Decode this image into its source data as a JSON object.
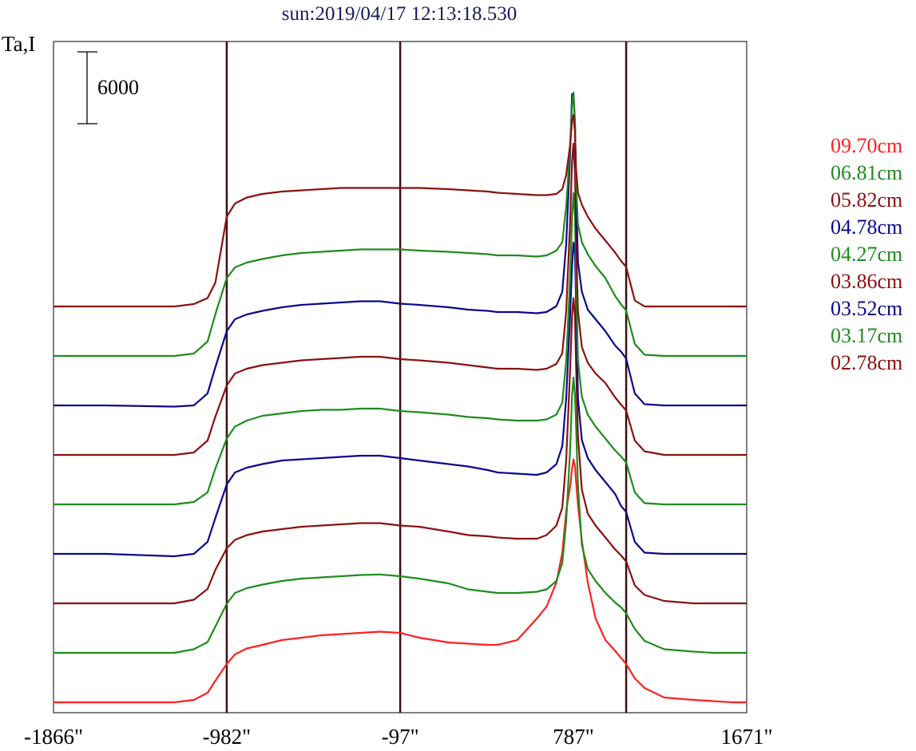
{
  "title": "sun:2019/04/17 12:13:18.530",
  "ylabel": "Ta,I",
  "scale_bar_label": "6000",
  "chart_data": {
    "type": "line",
    "title": "sun:2019/04/17 12:13:18.530",
    "ylabel": "Ta,I",
    "xlim": [
      -1866,
      1671
    ],
    "x_ticks": [
      -1866,
      -982,
      -97,
      787,
      1671
    ],
    "x_tick_labels": [
      "-1866\"",
      "-982\"",
      "-97\"",
      "787\"",
      "1671\""
    ],
    "vertical_lines": [
      -982,
      -97,
      1056
    ],
    "scale_bar_value": 6000,
    "legend_position": "right",
    "x": [
      -1866,
      -1600,
      -1250,
      -1150,
      -1080,
      -1040,
      -982,
      -940,
      -880,
      -800,
      -700,
      -600,
      -500,
      -400,
      -300,
      -200,
      -97,
      0,
      150,
      250,
      350,
      400,
      500,
      600,
      650,
      700,
      730,
      750,
      770,
      780,
      787,
      795,
      800,
      810,
      830,
      860,
      900,
      950,
      1000,
      1030,
      1056,
      1100,
      1150,
      1250,
      1400,
      1500,
      1600,
      1671
    ],
    "series": [
      {
        "name": "09.70cm",
        "color": "#ff2020",
        "offset": 0,
        "values": [
          0,
          0,
          0,
          200,
          800,
          1800,
          3200,
          4000,
          4500,
          4800,
          5200,
          5400,
          5600,
          5700,
          5800,
          5900,
          5800,
          5400,
          5000,
          4900,
          4800,
          4800,
          5200,
          7000,
          8000,
          10000,
          12500,
          16000,
          18000,
          19500,
          20300,
          19700,
          18500,
          16500,
          13500,
          10000,
          7000,
          5200,
          4300,
          3700,
          3200,
          2000,
          1200,
          400,
          200,
          100,
          0,
          0
        ]
      },
      {
        "name": "06.81cm",
        "color": "#1e8c1e",
        "offset": 1,
        "values": [
          0,
          0,
          0,
          300,
          900,
          2200,
          4100,
          5000,
          5400,
          5700,
          6000,
          6200,
          6300,
          6400,
          6500,
          6550,
          6400,
          6200,
          5800,
          5300,
          5100,
          5000,
          5000,
          5100,
          5300,
          6000,
          7500,
          11000,
          17000,
          21500,
          23000,
          21500,
          19000,
          14000,
          9000,
          7000,
          6000,
          5000,
          4200,
          3800,
          3300,
          2000,
          1000,
          300,
          100,
          0,
          0,
          0
        ]
      },
      {
        "name": "05.82cm",
        "color": "#8b1010",
        "offset": 2,
        "values": [
          0,
          0,
          0,
          300,
          1200,
          2800,
          4600,
          5300,
          5700,
          6000,
          6200,
          6400,
          6500,
          6600,
          6700,
          6700,
          6500,
          6400,
          6000,
          5700,
          5600,
          5500,
          5400,
          5400,
          5700,
          6500,
          8000,
          12000,
          19500,
          24000,
          25500,
          24000,
          20000,
          14000,
          9500,
          7500,
          6500,
          5500,
          4500,
          4000,
          3500,
          1500,
          700,
          200,
          0,
          0,
          0,
          0
        ]
      },
      {
        "name": "04.78cm",
        "color": "#0a0a8c",
        "offset": 3,
        "values": [
          0,
          0,
          -200,
          0,
          1000,
          3000,
          5800,
          6800,
          7200,
          7500,
          7800,
          7900,
          8000,
          8100,
          8200,
          8200,
          8000,
          7800,
          7500,
          7300,
          7000,
          6800,
          6700,
          6600,
          6800,
          7500,
          9000,
          13000,
          20000,
          24000,
          26000,
          25000,
          21000,
          13000,
          9500,
          8000,
          7000,
          6000,
          5000,
          4000,
          3500,
          1000,
          100,
          0,
          0,
          0,
          0,
          0
        ]
      },
      {
        "name": "04.27cm",
        "color": "#1e8c1e",
        "offset": 4,
        "values": [
          0,
          0,
          0,
          200,
          1000,
          3000,
          5500,
          6500,
          7000,
          7400,
          7600,
          7800,
          7900,
          7900,
          8000,
          8000,
          7800,
          7700,
          7500,
          7300,
          7200,
          7100,
          7000,
          7000,
          7100,
          7500,
          8500,
          12000,
          19000,
          24000,
          26000,
          24000,
          19000,
          12000,
          9000,
          7500,
          6500,
          5500,
          4500,
          4000,
          3500,
          1000,
          100,
          0,
          0,
          0,
          0,
          0
        ]
      },
      {
        "name": "03.86cm",
        "color": "#8b1010",
        "offset": 5,
        "values": [
          0,
          0,
          0,
          200,
          1200,
          3200,
          5800,
          6800,
          7200,
          7500,
          7700,
          7900,
          8000,
          8100,
          8200,
          8200,
          8000,
          7900,
          7700,
          7500,
          7300,
          7200,
          7200,
          7100,
          7200,
          7600,
          8500,
          12000,
          19500,
          24500,
          26000,
          23500,
          18000,
          12000,
          9000,
          7700,
          6800,
          6000,
          4800,
          4200,
          3700,
          1200,
          300,
          0,
          0,
          0,
          0,
          0
        ]
      },
      {
        "name": "03.52cm",
        "color": "#0a0a8c",
        "offset": 6,
        "values": [
          0,
          0,
          -100,
          0,
          1000,
          3200,
          6200,
          7200,
          7600,
          7900,
          8200,
          8400,
          8500,
          8600,
          8700,
          8700,
          8500,
          8400,
          8200,
          8000,
          7900,
          7800,
          7800,
          7700,
          7800,
          8300,
          9500,
          13500,
          21000,
          26000,
          26000,
          23500,
          18000,
          12000,
          9500,
          8000,
          7200,
          6200,
          5000,
          4500,
          3900,
          1000,
          100,
          0,
          0,
          0,
          0,
          0
        ]
      },
      {
        "name": "03.17cm",
        "color": "#1e8c1e",
        "offset": 7,
        "values": [
          0,
          0,
          0,
          200,
          1200,
          3500,
          6500,
          7400,
          7800,
          8100,
          8400,
          8600,
          8700,
          8800,
          8900,
          8900,
          8900,
          8800,
          8700,
          8600,
          8500,
          8400,
          8400,
          8300,
          8400,
          8800,
          9500,
          12500,
          17500,
          21000,
          22000,
          19500,
          14500,
          11000,
          9500,
          8500,
          7500,
          6500,
          5000,
          4300,
          3800,
          1000,
          100,
          0,
          0,
          0,
          0,
          0
        ]
      },
      {
        "name": "02.78cm",
        "color": "#8b1010",
        "offset": 8,
        "values": [
          0,
          0,
          0,
          200,
          700,
          2000,
          7500,
          8600,
          9100,
          9400,
          9600,
          9700,
          9800,
          9900,
          9900,
          9900,
          9900,
          9900,
          9800,
          9700,
          9600,
          9500,
          9400,
          9300,
          9300,
          9400,
          9800,
          11000,
          13500,
          15500,
          16000,
          14500,
          11500,
          9500,
          8500,
          7500,
          6500,
          5500,
          4500,
          3800,
          3300,
          500,
          0,
          0,
          0,
          0,
          0,
          0
        ]
      }
    ]
  }
}
